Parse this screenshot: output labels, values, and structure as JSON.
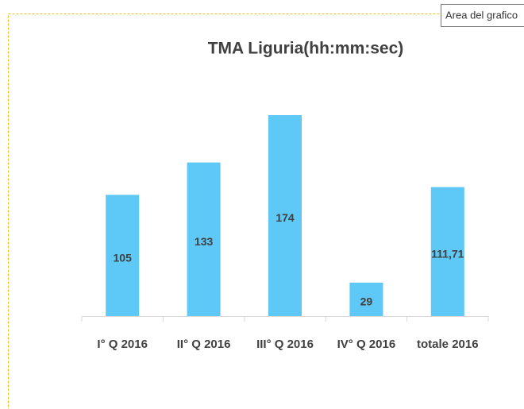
{
  "chart_data": {
    "type": "bar",
    "title": "TMA Liguria(hh:mm:sec)",
    "tooltip": "Area del grafico",
    "categories": [
      "I° Q 2016",
      "II° Q 2016",
      "III° Q 2016",
      "IV° Q 2016",
      "totale 2016"
    ],
    "values": [
      105,
      133,
      174,
      29,
      111.71
    ],
    "value_labels": [
      "105",
      "133",
      "174",
      "29",
      "111,71"
    ],
    "color": "#5ec8f6"
  }
}
